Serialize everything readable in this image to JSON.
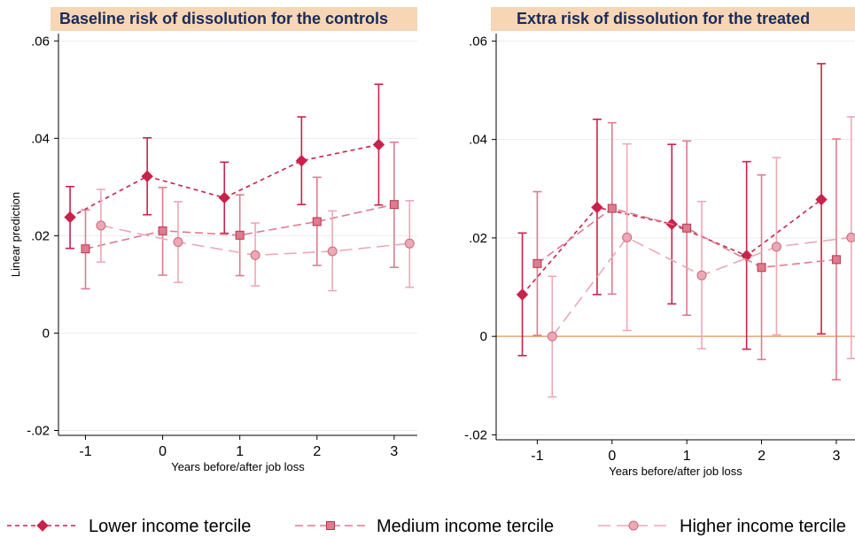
{
  "colors": {
    "title_bg": "#f6d6b4",
    "title_text": "#1a2a5c",
    "grid": "#e8ecef",
    "zero_line": "#e6a676",
    "lower": "#c8234a",
    "medium": "#e07a8e",
    "higher": "#eda8b6"
  },
  "legend": [
    {
      "key": "lower",
      "label": "Lower income tercile",
      "marker": "diamond"
    },
    {
      "key": "medium",
      "label": "Medium income tercile",
      "marker": "square"
    },
    {
      "key": "higher",
      "label": "Higher income tercile",
      "marker": "circle"
    }
  ],
  "chart_data": [
    {
      "type": "line",
      "title": "Baseline risk of dissolution for the controls",
      "xlabel": "Years before/after job loss",
      "ylabel": "Linear prediction",
      "xlim": [
        -1.35,
        3.3
      ],
      "ylim": [
        -0.021,
        0.0615
      ],
      "x_ticks": [
        -1,
        0,
        1,
        2,
        3
      ],
      "x_tick_labels": [
        "-1",
        "0",
        "1",
        "2",
        "3"
      ],
      "y_ticks": [
        -0.02,
        0,
        0.02,
        0.04,
        0.06
      ],
      "y_tick_labels": [
        "-.02",
        "0",
        ".02",
        ".04",
        ".06"
      ],
      "grid": true,
      "zero_line": false,
      "series": [
        {
          "name": "Lower income tercile",
          "key": "lower",
          "marker": "diamond",
          "x": [
            -1.2,
            -0.2,
            0.8,
            1.8,
            2.8
          ],
          "y": [
            0.0238,
            0.0322,
            0.0278,
            0.0354,
            0.0387
          ],
          "ci_low": [
            0.0174,
            0.0243,
            0.0205,
            0.0264,
            0.0263
          ],
          "ci_high": [
            0.0301,
            0.0401,
            0.0351,
            0.0444,
            0.0511
          ]
        },
        {
          "name": "Medium income tercile",
          "key": "medium",
          "marker": "square",
          "x": [
            -1.0,
            0.0,
            1.0,
            2.0,
            3.0
          ],
          "y": [
            0.0173,
            0.021,
            0.0201,
            0.0229,
            0.0264
          ],
          "ci_low": [
            0.0091,
            0.0119,
            0.0118,
            0.0139,
            0.0135
          ],
          "ci_high": [
            0.0253,
            0.0299,
            0.0284,
            0.032,
            0.0392
          ]
        },
        {
          "name": "Higher income tercile",
          "key": "higher",
          "marker": "circle",
          "x": [
            -0.8,
            0.2,
            1.2,
            2.2,
            3.2
          ],
          "y": [
            0.0221,
            0.0187,
            0.016,
            0.0168,
            0.0184
          ],
          "ci_low": [
            0.0146,
            0.0104,
            0.0097,
            0.0087,
            0.0094
          ],
          "ci_high": [
            0.0295,
            0.027,
            0.0226,
            0.0251,
            0.0272
          ]
        }
      ]
    },
    {
      "type": "line",
      "title": "Extra risk of dissolution for the treated",
      "xlabel": "Years before/after job loss",
      "ylabel": "",
      "xlim": [
        -1.55,
        3.25
      ],
      "ylim": [
        -0.021,
        0.0615
      ],
      "x_ticks": [
        -1,
        0,
        1,
        2,
        3
      ],
      "x_tick_labels": [
        "-1",
        "0",
        "1",
        "2",
        "3"
      ],
      "y_ticks": [
        -0.02,
        0,
        0.02,
        0.04,
        0.06
      ],
      "y_tick_labels": [
        "-.02",
        "0",
        ".02",
        ".04",
        ".06"
      ],
      "grid": true,
      "zero_line": true,
      "series": [
        {
          "name": "Lower income tercile",
          "key": "lower",
          "marker": "diamond",
          "x": [
            -1.2,
            -0.2,
            0.8,
            1.8,
            2.8
          ],
          "y": [
            0.0085,
            0.0262,
            0.0228,
            0.0164,
            0.0278
          ],
          "ci_low": [
            -0.0039,
            0.0085,
            0.0066,
            -0.0026,
            0.0005
          ],
          "ci_high": [
            0.021,
            0.0441,
            0.039,
            0.0355,
            0.0554
          ]
        },
        {
          "name": "Medium income tercile",
          "key": "medium",
          "marker": "square",
          "x": [
            -1.0,
            0.0,
            1.0,
            2.0,
            3.0
          ],
          "y": [
            0.0148,
            0.026,
            0.022,
            0.014,
            0.0156
          ],
          "ci_low": [
            0.0002,
            0.0086,
            0.0043,
            -0.0047,
            -0.0088
          ],
          "ci_high": [
            0.0294,
            0.0434,
            0.0397,
            0.0328,
            0.0401
          ]
        },
        {
          "name": "Higher income tercile",
          "key": "higher",
          "marker": "circle",
          "x": [
            -0.8,
            0.2,
            1.2,
            2.2,
            3.2
          ],
          "y": [
            0.0,
            0.0201,
            0.0124,
            0.0182,
            0.0201
          ],
          "ci_low": [
            -0.0123,
            0.0012,
            -0.0025,
            0.0003,
            -0.0045
          ],
          "ci_high": [
            0.0122,
            0.0391,
            0.0274,
            0.0363,
            0.0446
          ]
        }
      ]
    }
  ]
}
